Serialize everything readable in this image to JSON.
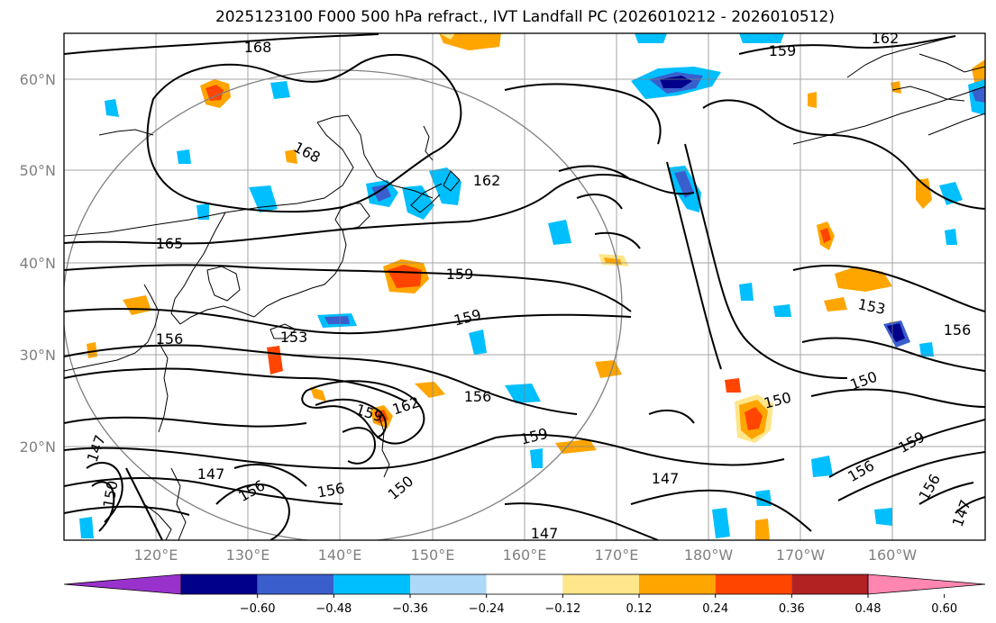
{
  "title": "2025123100 F000 500 hPa refract., IVT Landfall PC (2026010212 - 2026010512)",
  "lat_labels": [
    "60°N",
    "50°N",
    "40°N",
    "30°N",
    "20°N"
  ],
  "lon_labels": [
    "120°E",
    "130°E",
    "140°E",
    "150°E",
    "160°E",
    "170°E",
    "180°W",
    "170°W",
    "160°W"
  ],
  "contour_labels": [
    "168",
    "159",
    "162",
    "168",
    "162",
    "165",
    "159",
    "159",
    "153",
    "156",
    "156",
    "159",
    "162",
    "156",
    "159",
    "150",
    "150",
    "153",
    "156",
    "147",
    "147",
    "150",
    "156",
    "156",
    "150",
    "147",
    "147",
    "156",
    "156",
    "159",
    "147"
  ],
  "colorbar": {
    "tick_labels": [
      "−0.60",
      "−0.48",
      "−0.36",
      "−0.24",
      "−0.12",
      "0.12",
      "0.24",
      "0.36",
      "0.48",
      "0.60"
    ],
    "colors": [
      "#9932cc",
      "#00008b",
      "#3a5fcd",
      "#00bfff",
      "#add8f8",
      "#ffffff",
      "#ffe68a",
      "#ffa500",
      "#ff4500",
      "#b22222",
      "#ff86b0"
    ]
  }
}
